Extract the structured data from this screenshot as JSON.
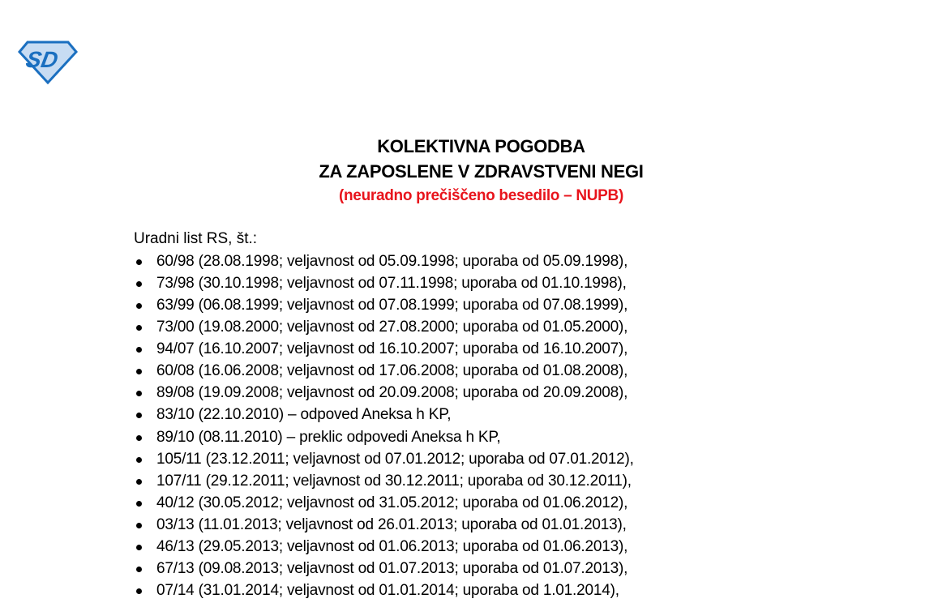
{
  "logo": {
    "text": "SD",
    "colors": {
      "outline": "#1a6fc0",
      "fill": "#c7dcf3"
    }
  },
  "title": {
    "line1": "KOLEKTIVNA POGODBA",
    "line2": "ZA ZAPOSLENE V ZDRAVSTVENI NEGI",
    "subtitle": "(neuradno prečiščeno besedilo – NUPB)",
    "subtitle_color": "#e8141c"
  },
  "intro": "Uradni list RS, št.:",
  "items": [
    "60/98 (28.08.1998; veljavnost od 05.09.1998; uporaba od 05.09.1998),",
    "73/98 (30.10.1998; veljavnost od 07.11.1998; uporaba od 01.10.1998),",
    "63/99 (06.08.1999; veljavnost od 07.08.1999; uporaba od 07.08.1999),",
    "73/00 (19.08.2000; veljavnost od 27.08.2000; uporaba od 01.05.2000),",
    "94/07 (16.10.2007; veljavnost od 16.10.2007; uporaba od 16.10.2007),",
    "60/08 (16.06.2008; veljavnost od 17.06.2008; uporaba od 01.08.2008),",
    "89/08 (19.09.2008; veljavnost od 20.09.2008; uporaba od 20.09.2008),",
    "83/10 (22.10.2010) – odpoved Aneksa h KP,",
    "89/10 (08.11.2010) – preklic odpovedi Aneksa h KP,",
    "105/11 (23.12.2011; veljavnost od 07.01.2012; uporaba od 07.01.2012),",
    "107/11 (29.12.2011; veljavnost od 30.12.2011; uporaba od 30.12.2011),",
    "40/12 (30.05.2012; veljavnost od 31.05.2012; uporaba od 01.06.2012),",
    "03/13 (11.01.2013; veljavnost od 26.01.2013; uporaba od 01.01.2013),",
    "46/13 (29.05.2013; veljavnost od 01.06.2013; uporaba od 01.06.2013),",
    "67/13 (09.08.2013; veljavnost od 01.07.2013; uporaba od 01.07.2013),",
    "07/14 (31.01.2014; veljavnost od 01.01.2014; uporaba od 1.01.2014),"
  ]
}
